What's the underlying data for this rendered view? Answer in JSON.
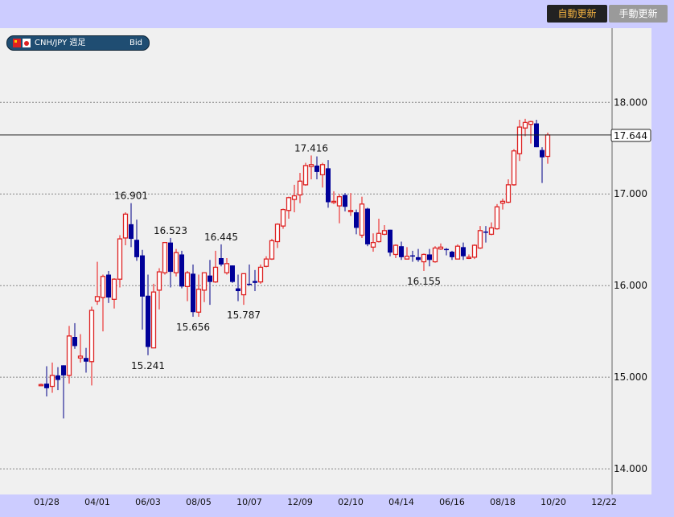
{
  "header": {
    "auto_update": "自動更新",
    "manual_update": "手動更新"
  },
  "legend": {
    "symbol": "CNH/JPY 週足",
    "price_type": "Bid",
    "flags": [
      "china-flag-icon",
      "japan-flag-icon"
    ]
  },
  "colors": {
    "up": "#dd2222",
    "down": "#000099",
    "background": "#f0f0f0",
    "frame": "#ccccff"
  },
  "chart_data": {
    "type": "candlestick",
    "ylim": [
      13.72,
      18.81
    ],
    "grid": true,
    "y_ticks": [
      "14.000",
      "15.000",
      "16.000",
      "17.000",
      "18.000"
    ],
    "y_tick_values": [
      14,
      15,
      16,
      17,
      18
    ],
    "x_ticks": [
      {
        "label": "01/28",
        "index": 1
      },
      {
        "label": "04/01",
        "index": 10
      },
      {
        "label": "06/03",
        "index": 19
      },
      {
        "label": "08/05",
        "index": 28
      },
      {
        "label": "10/07",
        "index": 37
      },
      {
        "label": "12/09",
        "index": 46
      },
      {
        "label": "02/10",
        "index": 55
      },
      {
        "label": "04/14",
        "index": 64
      },
      {
        "label": "06/16",
        "index": 73
      },
      {
        "label": "08/18",
        "index": 82
      },
      {
        "label": "10/20",
        "index": 91
      },
      {
        "label": "12/22",
        "index": 100
      }
    ],
    "current_price": {
      "value": 17.644,
      "label": "17.644"
    },
    "annotations": [
      {
        "label": "16.901",
        "index": 16,
        "value": 16.9,
        "side": "above"
      },
      {
        "label": "15.241",
        "index": 19,
        "value": 15.24,
        "side": "below"
      },
      {
        "label": "16.523",
        "index": 23,
        "value": 16.52,
        "side": "above"
      },
      {
        "label": "15.656",
        "index": 27,
        "value": 15.66,
        "side": "below"
      },
      {
        "label": "16.445",
        "index": 32,
        "value": 16.45,
        "side": "above"
      },
      {
        "label": "15.787",
        "index": 36,
        "value": 15.79,
        "side": "below"
      },
      {
        "label": "17.416",
        "index": 48,
        "value": 17.42,
        "side": "above"
      },
      {
        "label": "16.155",
        "index": 68,
        "value": 16.16,
        "side": "below"
      }
    ],
    "ohlc": [
      [
        14.92,
        14.93,
        14.91,
        14.92
      ],
      [
        14.93,
        15.12,
        14.79,
        14.88
      ],
      [
        14.9,
        15.16,
        14.83,
        15.02
      ],
      [
        15.02,
        15.11,
        14.86,
        14.97
      ],
      [
        15.13,
        15.13,
        14.55,
        15.02
      ],
      [
        15.02,
        15.56,
        14.93,
        15.45
      ],
      [
        15.44,
        15.59,
        15.31,
        15.34
      ],
      [
        15.21,
        15.47,
        15.16,
        15.23
      ],
      [
        15.21,
        15.32,
        15.05,
        15.17
      ],
      [
        15.17,
        15.77,
        14.91,
        15.73
      ],
      [
        15.83,
        16.26,
        15.79,
        15.88
      ],
      [
        15.87,
        16.12,
        15.5,
        16.1
      ],
      [
        16.12,
        16.16,
        15.81,
        15.87
      ],
      [
        15.85,
        16.08,
        15.75,
        16.07
      ],
      [
        16.07,
        16.55,
        15.98,
        16.51
      ],
      [
        16.52,
        16.8,
        16.44,
        16.78
      ],
      [
        16.67,
        16.9,
        16.42,
        16.51
      ],
      [
        16.5,
        16.72,
        16.27,
        16.31
      ],
      [
        16.33,
        16.39,
        15.52,
        15.88
      ],
      [
        15.89,
        16.12,
        15.24,
        15.33
      ],
      [
        15.32,
        16.02,
        15.32,
        15.93
      ],
      [
        15.95,
        16.19,
        15.74,
        16.15
      ],
      [
        16.14,
        16.47,
        16.12,
        16.47
      ],
      [
        16.47,
        16.52,
        15.98,
        16.15
      ],
      [
        16.14,
        16.4,
        16.1,
        16.36
      ],
      [
        16.34,
        16.38,
        15.97,
        15.99
      ],
      [
        15.99,
        16.16,
        15.83,
        16.14
      ],
      [
        16.13,
        16.23,
        15.66,
        15.71
      ],
      [
        15.71,
        16.12,
        15.66,
        15.96
      ],
      [
        15.95,
        16.14,
        15.82,
        16.14
      ],
      [
        16.11,
        16.28,
        15.79,
        16.04
      ],
      [
        16.04,
        16.38,
        16.03,
        16.2
      ],
      [
        16.3,
        16.45,
        16.21,
        16.23
      ],
      [
        16.14,
        16.3,
        16.12,
        16.24
      ],
      [
        16.22,
        16.22,
        16.03,
        16.04
      ],
      [
        15.97,
        16.12,
        15.83,
        15.94
      ],
      [
        15.9,
        16.13,
        15.79,
        16.13
      ],
      [
        16.02,
        16.23,
        16.0,
        16.01
      ],
      [
        16.05,
        16.17,
        15.94,
        16.03
      ],
      [
        16.04,
        16.23,
        16.02,
        16.2
      ],
      [
        16.21,
        16.32,
        16.2,
        16.29
      ],
      [
        16.29,
        16.51,
        16.28,
        16.49
      ],
      [
        16.48,
        16.68,
        16.41,
        16.67
      ],
      [
        16.65,
        16.84,
        16.62,
        16.83
      ],
      [
        16.82,
        16.97,
        16.73,
        16.96
      ],
      [
        16.94,
        17.1,
        16.8,
        16.98
      ],
      [
        16.99,
        17.23,
        16.9,
        17.14
      ],
      [
        17.1,
        17.34,
        17.09,
        17.31
      ],
      [
        17.3,
        17.42,
        17.16,
        17.32
      ],
      [
        17.31,
        17.41,
        17.16,
        17.24
      ],
      [
        17.21,
        17.34,
        17.07,
        17.32
      ],
      [
        17.28,
        17.37,
        16.85,
        16.91
      ],
      [
        16.91,
        17.03,
        16.89,
        16.92
      ],
      [
        16.87,
        17.0,
        16.68,
        16.97
      ],
      [
        16.99,
        17.01,
        16.81,
        16.86
      ],
      [
        16.81,
        17.01,
        16.76,
        16.82
      ],
      [
        16.8,
        16.83,
        16.56,
        16.63
      ],
      [
        16.55,
        16.97,
        16.52,
        16.89
      ],
      [
        16.84,
        16.85,
        16.43,
        16.45
      ],
      [
        16.42,
        16.57,
        16.37,
        16.47
      ],
      [
        16.48,
        16.73,
        16.47,
        16.57
      ],
      [
        16.56,
        16.66,
        16.55,
        16.6
      ],
      [
        16.61,
        16.61,
        16.32,
        16.36
      ],
      [
        16.34,
        16.45,
        16.3,
        16.44
      ],
      [
        16.43,
        16.48,
        16.28,
        16.31
      ],
      [
        16.29,
        16.42,
        16.29,
        16.32
      ],
      [
        16.33,
        16.38,
        16.26,
        16.32
      ],
      [
        16.31,
        16.4,
        16.26,
        16.28
      ],
      [
        16.26,
        16.35,
        16.16,
        16.34
      ],
      [
        16.34,
        16.4,
        16.21,
        16.28
      ],
      [
        16.26,
        16.43,
        16.25,
        16.41
      ],
      [
        16.4,
        16.46,
        16.39,
        16.42
      ],
      [
        16.4,
        16.41,
        16.33,
        16.39
      ],
      [
        16.37,
        16.38,
        16.28,
        16.31
      ],
      [
        16.29,
        16.45,
        16.29,
        16.43
      ],
      [
        16.42,
        16.47,
        16.28,
        16.32
      ],
      [
        16.3,
        16.34,
        16.29,
        16.31
      ],
      [
        16.31,
        16.45,
        16.29,
        16.44
      ],
      [
        16.41,
        16.65,
        16.4,
        16.6
      ],
      [
        16.59,
        16.65,
        16.47,
        16.58
      ],
      [
        16.56,
        16.69,
        16.55,
        16.63
      ],
      [
        16.62,
        16.89,
        16.61,
        16.86
      ],
      [
        16.9,
        16.95,
        16.83,
        16.92
      ],
      [
        16.91,
        17.16,
        16.9,
        17.1
      ],
      [
        17.1,
        17.49,
        17.09,
        17.47
      ],
      [
        17.44,
        17.81,
        17.36,
        17.73
      ],
      [
        17.72,
        17.82,
        17.63,
        17.78
      ],
      [
        17.76,
        17.8,
        17.55,
        17.79
      ],
      [
        17.77,
        17.81,
        17.51,
        17.51
      ],
      [
        17.48,
        17.51,
        17.12,
        17.4
      ],
      [
        17.41,
        17.67,
        17.33,
        17.644
      ]
    ]
  }
}
